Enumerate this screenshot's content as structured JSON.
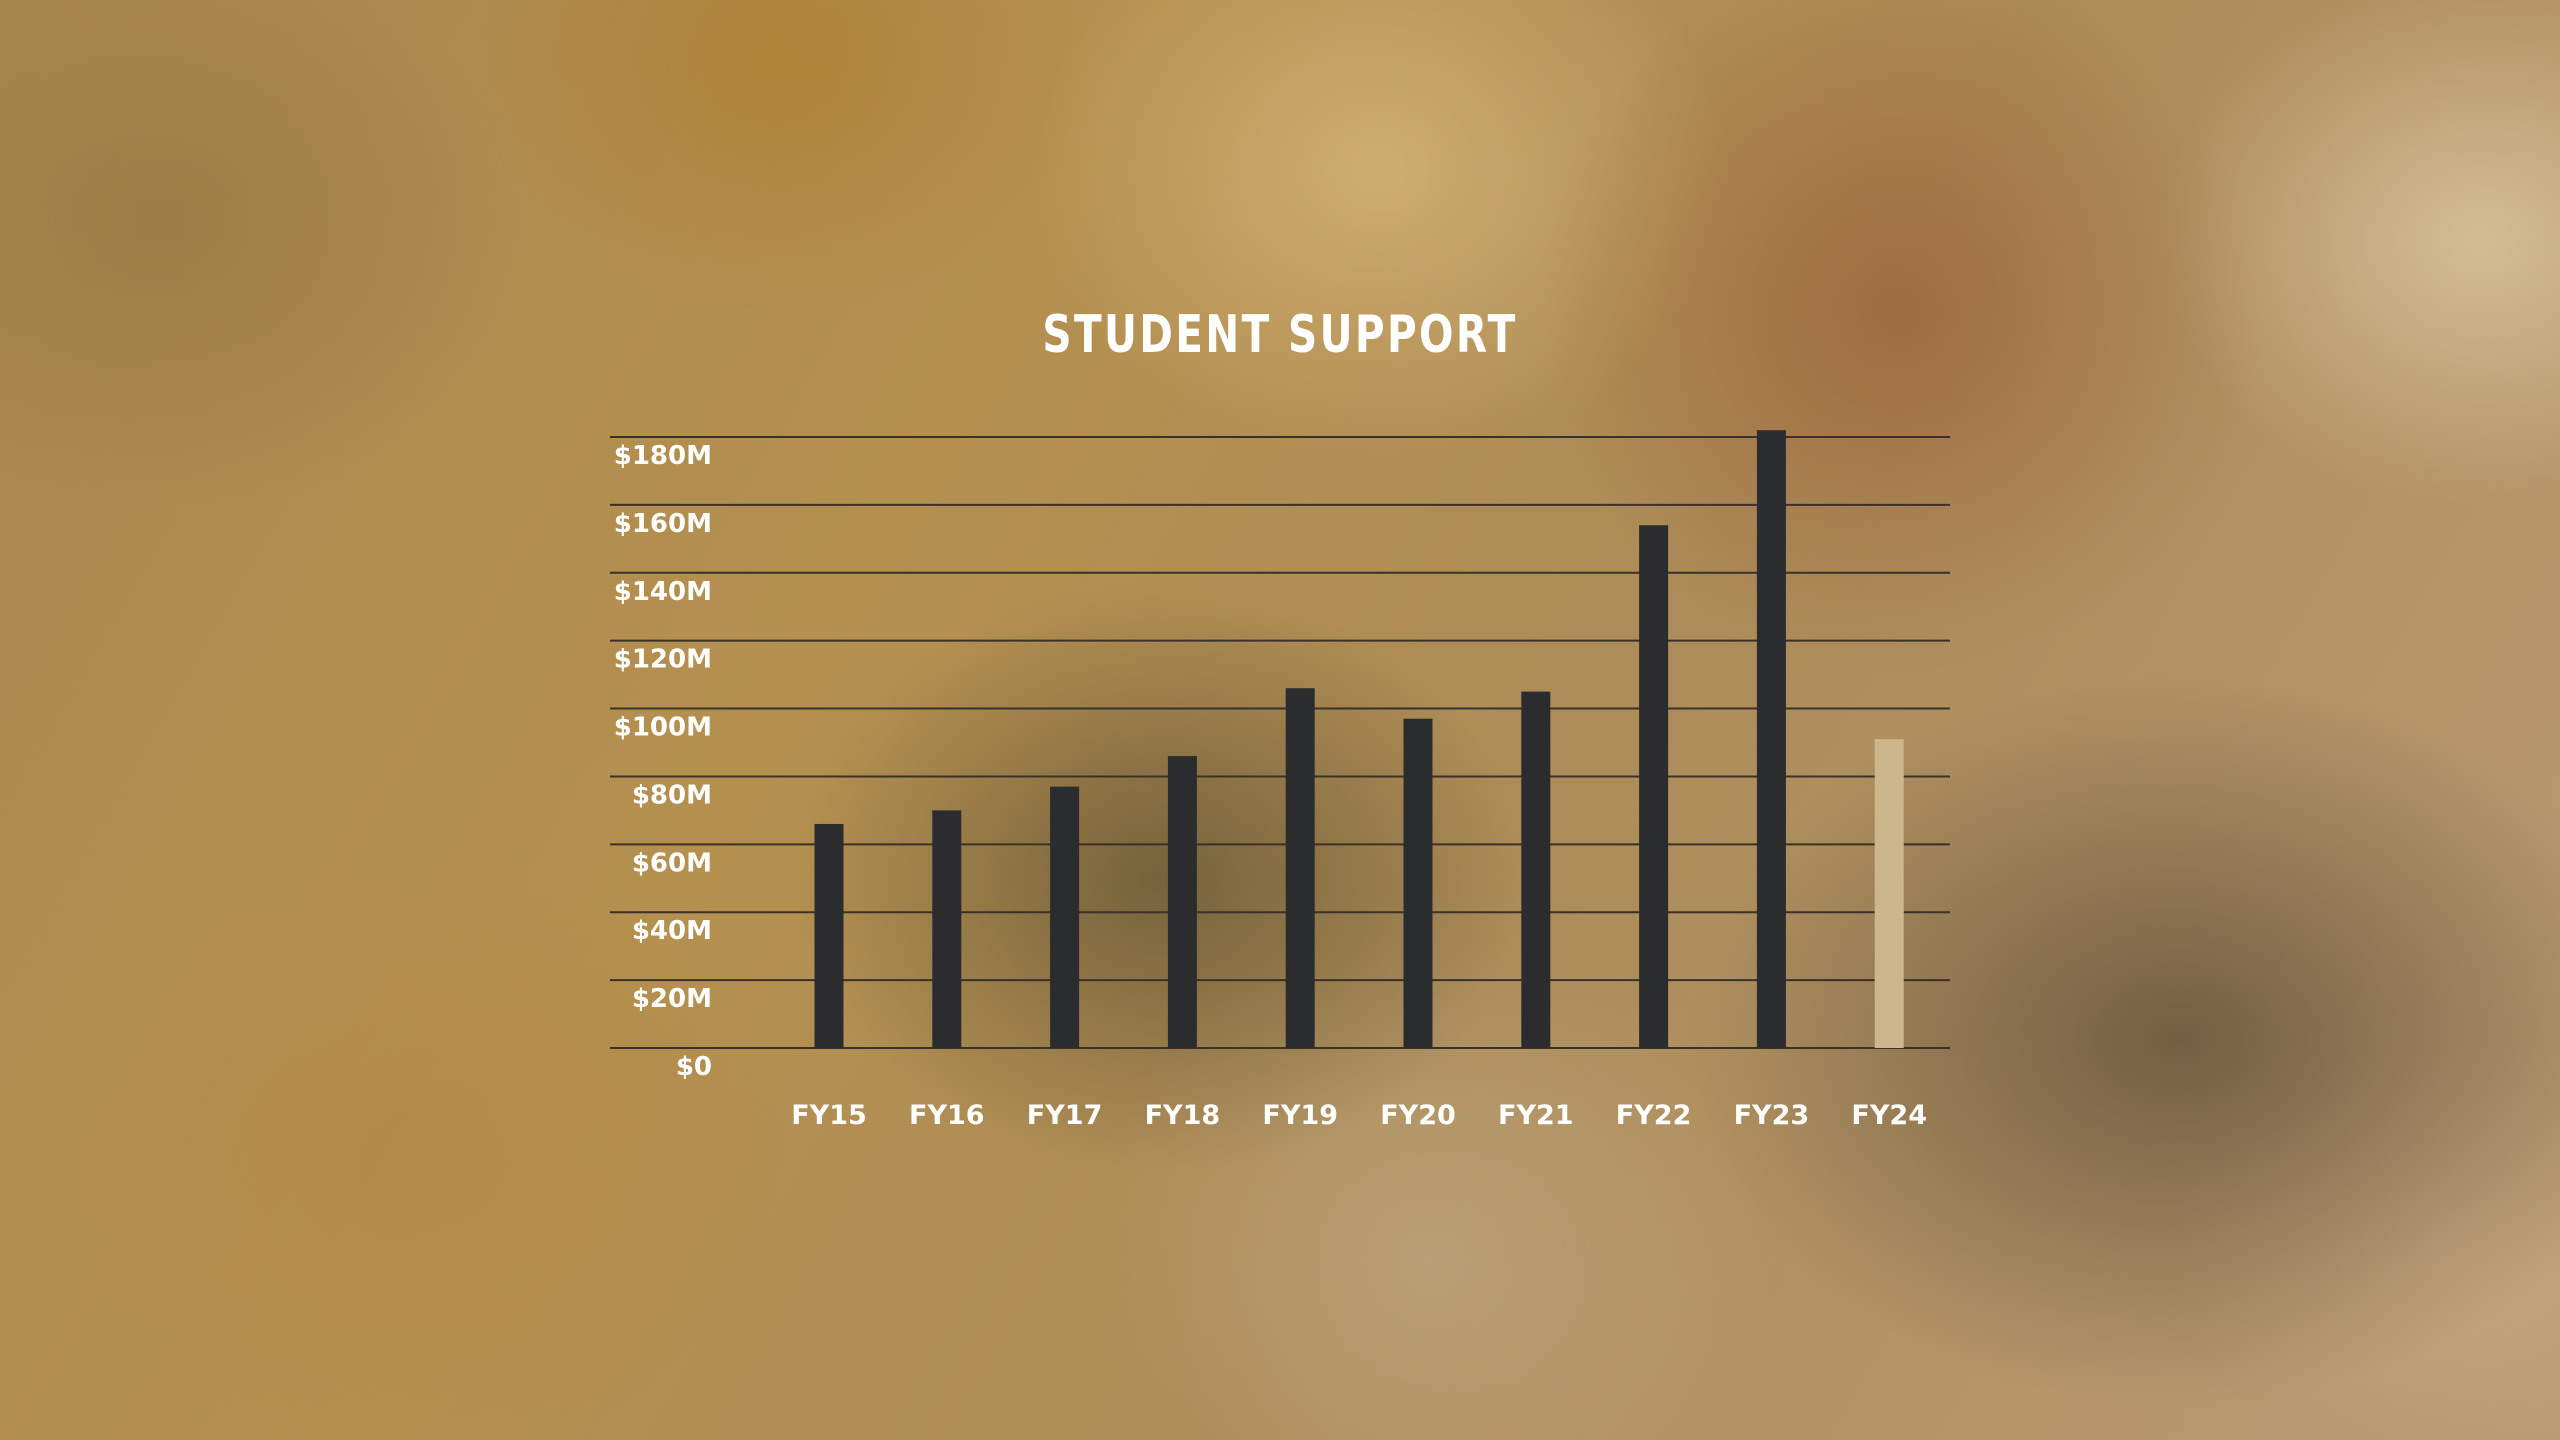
{
  "chart_data": {
    "type": "bar",
    "title": "STUDENT SUPPORT",
    "xlabel": "",
    "ylabel": "",
    "categories": [
      "FY15",
      "FY16",
      "FY17",
      "FY18",
      "FY19",
      "FY20",
      "FY21",
      "FY22",
      "FY23",
      "FY24"
    ],
    "values": [
      66,
      70,
      77,
      86,
      106,
      97,
      105,
      154,
      182,
      91
    ],
    "highlight_category": "FY24",
    "ylim": [
      0,
      180
    ],
    "yticks": [
      0,
      20,
      40,
      60,
      80,
      100,
      120,
      140,
      160,
      180
    ],
    "ytick_labels": [
      "$0",
      "$20M",
      "$40M",
      "$60M",
      "$80M",
      "$100M",
      "$120M",
      "$140M",
      "$160M",
      "$180M"
    ],
    "grid": true,
    "legend": "none",
    "colors": {
      "bar": "#2b2c2e",
      "bar_highlight": "#cdb58c",
      "highlight_label": "#d3c29e",
      "gridline": "#3a3128",
      "text": "#ffffff"
    }
  }
}
